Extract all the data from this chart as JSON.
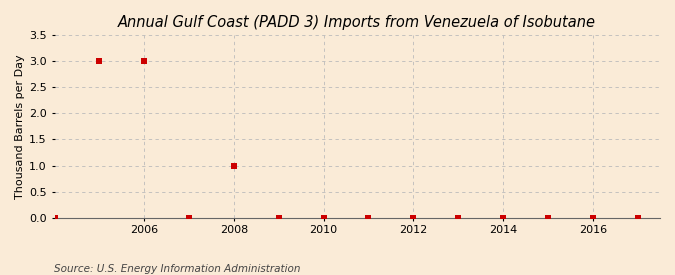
{
  "title": "Annual Gulf Coast (PADD 3) Imports from Venezuela of Isobutane",
  "ylabel": "Thousand Barrels per Day",
  "source": "Source: U.S. Energy Information Administration",
  "background_color": "#faebd7",
  "plot_bg_color": "#faebd7",
  "data_points": {
    "years": [
      2004,
      2005,
      2006,
      2007,
      2008,
      2009,
      2010,
      2011,
      2012,
      2013,
      2014,
      2015,
      2016,
      2017
    ],
    "values": [
      0.0,
      3.0,
      3.0,
      0.0,
      1.0,
      0.0,
      0.0,
      0.0,
      0.0,
      0.0,
      0.0,
      0.0,
      0.0,
      0.0
    ]
  },
  "marker_color": "#cc0000",
  "marker_size": 4,
  "xlim": [
    2004.0,
    2017.5
  ],
  "ylim": [
    0.0,
    3.5
  ],
  "yticks": [
    0.0,
    0.5,
    1.0,
    1.5,
    2.0,
    2.5,
    3.0,
    3.5
  ],
  "xticks": [
    2006,
    2008,
    2010,
    2012,
    2014,
    2016
  ],
  "grid_color": "#bbbbbb",
  "grid_style": "--",
  "title_fontsize": 10.5,
  "label_fontsize": 8,
  "tick_fontsize": 8,
  "source_fontsize": 7.5
}
